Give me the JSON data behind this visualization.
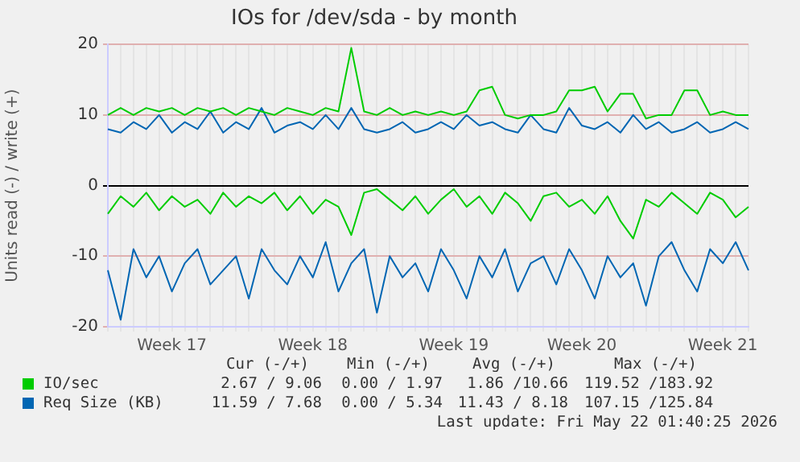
{
  "chart_data": {
    "type": "line",
    "title": "IOs for /dev/sda - by month",
    "ylabel": "Units read (-) / write (+)",
    "categories": [
      null,
      null,
      null,
      null,
      null,
      "Week 17",
      null,
      null,
      null,
      null,
      null,
      null,
      null,
      null,
      null,
      null,
      "Week 18",
      null,
      null,
      null,
      null,
      null,
      null,
      null,
      null,
      null,
      null,
      "Week 19",
      null,
      null,
      null,
      null,
      null,
      null,
      null,
      null,
      null,
      "Week 20",
      null,
      null,
      null,
      null,
      null,
      null,
      null,
      null,
      null,
      null,
      "Week 21",
      null,
      null
    ],
    "ylim": [
      -20,
      20
    ],
    "yticks": [
      -20,
      -10,
      0,
      10,
      20
    ],
    "grid": true,
    "legend": "bottom",
    "marker": "none",
    "line_style": "solid",
    "series": [
      {
        "name": "IO/sec",
        "color": "#00cc00",
        "values": [
          10,
          11,
          10,
          11,
          10.5,
          11,
          10,
          11,
          10.5,
          11,
          10,
          11,
          10.5,
          10,
          11,
          10.5,
          10,
          11,
          10.5,
          19.5,
          10.5,
          10,
          11,
          10,
          10.5,
          10,
          10.5,
          10,
          10.5,
          13.5,
          14,
          10,
          9.5,
          10,
          10,
          10.5,
          13.5,
          13.5,
          14,
          10.5,
          13,
          13,
          9.5,
          10,
          10,
          13.5,
          13.5,
          10,
          10.5,
          10,
          10
        ]
      },
      {
        "color": "#00cc00",
        "values": [
          -4,
          -1.5,
          -3,
          -1,
          -3.5,
          -1.5,
          -3,
          -2,
          -4,
          -1,
          -3,
          -1.5,
          -2.5,
          -1,
          -3.5,
          -1.5,
          -4,
          -2,
          -3,
          -7,
          -1,
          -0.5,
          -2,
          -3.5,
          -1.5,
          -4,
          -2,
          -0.5,
          -3,
          -1.5,
          -4,
          -1,
          -2.5,
          -5,
          -1.5,
          -1,
          -3,
          -2,
          -4,
          -1.5,
          -5,
          -7.5,
          -2,
          -3,
          -1,
          -2.5,
          -4,
          -1,
          -2,
          -4.5,
          -3
        ]
      },
      {
        "name": "Req Size (KB)",
        "color": "#0066b3",
        "values": [
          8,
          7.5,
          9,
          8,
          10,
          7.5,
          9,
          8,
          10.5,
          7.5,
          9,
          8,
          11,
          7.5,
          8.5,
          9,
          8,
          10,
          8,
          11,
          8,
          7.5,
          8,
          9,
          7.5,
          8,
          9,
          8,
          10,
          8.5,
          9,
          8,
          7.5,
          10,
          8,
          7.5,
          11,
          8.5,
          8,
          9,
          7.5,
          10,
          8,
          9,
          7.5,
          8,
          9,
          7.5,
          8,
          9,
          8
        ]
      },
      {
        "color": "#0066b3",
        "values": [
          -12,
          -19,
          -9,
          -13,
          -10,
          -15,
          -11,
          -9,
          -14,
          -12,
          -10,
          -16,
          -9,
          -12,
          -14,
          -10,
          -13,
          -8,
          -15,
          -11,
          -9,
          -18,
          -10,
          -13,
          -11,
          -15,
          -9,
          -12,
          -16,
          -10,
          -13,
          -9,
          -15,
          -11,
          -10,
          -14,
          -9,
          -12,
          -16,
          -10,
          -13,
          -11,
          -17,
          -10,
          -8,
          -12,
          -15,
          -9,
          -11,
          -8,
          -12
        ]
      }
    ],
    "annotations": [
      "Cur (-/+)",
      "Min (-/+)",
      "Avg (-/+)",
      "Max (-/+)",
      "2.67 / 9.06",
      "0.00 / 1.97",
      "1.86 /10.66",
      "119.52 /183.92",
      "11.59 / 7.68",
      "0.00 / 5.34",
      "11.43 / 8.18",
      "107.15 /125.84",
      "Last update: Fri May 22 01:40:25 2026"
    ]
  }
}
